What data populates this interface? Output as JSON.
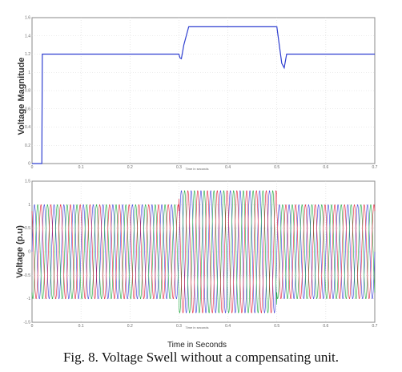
{
  "chart_data": [
    {
      "type": "line",
      "title": "",
      "ylabel": "Voltage Magnitude",
      "xlabel_inner": "Time in seconds",
      "x_ticks": [
        "0",
        "0.1",
        "0.2",
        "0.3",
        "0.4",
        "0.5",
        "0.6",
        "0.7"
      ],
      "y_ticks": [
        "0",
        "0.2",
        "0.4",
        "0.6",
        "0.8",
        "1",
        "1.2",
        "1.4",
        "1.6"
      ],
      "xlim": [
        0,
        0.7
      ],
      "ylim": [
        0,
        1.6
      ],
      "grid": true,
      "series": [
        {
          "color": "#2f3fd0",
          "x": [
            0,
            0.02,
            0.021,
            0.3,
            0.302,
            0.305,
            0.31,
            0.32,
            0.5,
            0.505,
            0.51,
            0.515,
            0.52,
            0.7
          ],
          "y": [
            0,
            0,
            1.2,
            1.2,
            1.16,
            1.15,
            1.3,
            1.5,
            1.5,
            1.3,
            1.1,
            1.05,
            1.2,
            1.2
          ]
        }
      ]
    },
    {
      "type": "line",
      "title": "",
      "ylabel": "Voltage (p.u)",
      "xlabel_inner": "Time in seconds",
      "x_ticks": [
        "0",
        "0.1",
        "0.2",
        "0.3",
        "0.4",
        "0.5",
        "0.6",
        "0.7"
      ],
      "y_ticks": [
        "-1.5",
        "-1",
        "-0.5",
        "0",
        "0.5",
        "1",
        "1.5"
      ],
      "xlim": [
        0,
        0.7
      ],
      "ylim": [
        -1.5,
        1.5
      ],
      "grid": true,
      "frequency_hz": 50,
      "series": [
        {
          "color": "#3a3fd8",
          "phase_deg": 0,
          "segments": [
            {
              "x": [
                0,
                0.3
              ],
              "amplitude": 1.0
            },
            {
              "x": [
                0.3,
                0.5
              ],
              "amplitude": 1.3
            },
            {
              "x": [
                0.5,
                0.7
              ],
              "amplitude": 1.0
            }
          ]
        },
        {
          "color": "#1aa83a",
          "phase_deg": -120,
          "segments": [
            {
              "x": [
                0,
                0.3
              ],
              "amplitude": 1.0
            },
            {
              "x": [
                0.3,
                0.5
              ],
              "amplitude": 1.3
            },
            {
              "x": [
                0.5,
                0.7
              ],
              "amplitude": 1.0
            }
          ]
        },
        {
          "color": "#e0203a",
          "phase_deg": 120,
          "segments": [
            {
              "x": [
                0,
                0.3
              ],
              "amplitude": 1.0
            },
            {
              "x": [
                0.3,
                0.5
              ],
              "amplitude": 1.3
            },
            {
              "x": [
                0.5,
                0.7
              ],
              "amplitude": 1.0
            }
          ]
        }
      ]
    }
  ],
  "figure": {
    "bottom_axis_label": "Time in Seconds",
    "caption": "Fig. 8. Voltage Swell without a compensating unit."
  }
}
